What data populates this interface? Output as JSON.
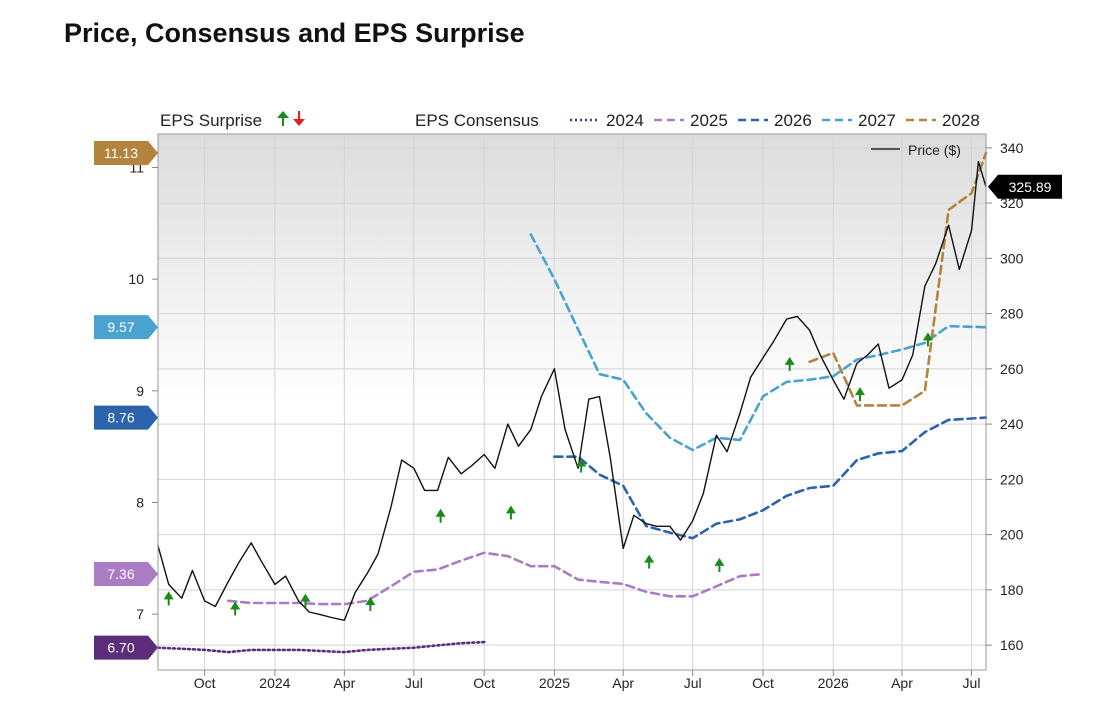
{
  "title": "Price, Consensus and EPS Surprise",
  "legend": {
    "eps_surprise_label": "EPS Surprise",
    "eps_consensus_label": "EPS Consensus",
    "price_label": "Price ($)"
  },
  "colors": {
    "2024": "#5b2d7a",
    "2025": "#a97cc3",
    "2026": "#2b64ad",
    "2027": "#4aa3cf",
    "2028": "#b3843e",
    "price": "#111111",
    "surprise_up": "#1a8a1a",
    "surprise_down": "#e02020",
    "price_badge": "#000000"
  },
  "chart_data": {
    "type": "line",
    "title": "Price, Consensus and EPS Surprise",
    "x_ticks": [
      "Oct",
      "2024",
      "Apr",
      "Jul",
      "Oct",
      "2025",
      "Apr",
      "Jul",
      "Oct",
      "2026",
      "Apr",
      "Jul"
    ],
    "x_tick_dates": [
      "2023-10",
      "2024-01",
      "2024-04",
      "2024-07",
      "2024-10",
      "2025-01",
      "2025-04",
      "2025-07",
      "2025-10",
      "2026-01",
      "2026-04",
      "2026-07"
    ],
    "x_range": [
      "2023-08-01",
      "2026-07-20"
    ],
    "left_axis": {
      "label": "",
      "ticks": [
        "7",
        "8",
        "9",
        "10",
        "11"
      ],
      "range": [
        6.5,
        11.3
      ]
    },
    "right_axis": {
      "label": "",
      "ticks": [
        "160",
        "180",
        "200",
        "220",
        "240",
        "260",
        "280",
        "300",
        "320",
        "340"
      ],
      "range": [
        151,
        345
      ]
    },
    "grid": true,
    "legend_position": "top",
    "current_price": "325.89",
    "series": [
      {
        "name": "2024",
        "axis": "left",
        "style": "dotted",
        "current": "6.70",
        "x": [
          "2023-08-01",
          "2023-09-01",
          "2023-10-01",
          "2023-11-01",
          "2023-12-01",
          "2024-01-01",
          "2024-02-01",
          "2024-03-01",
          "2024-04-01",
          "2024-05-01",
          "2024-06-01",
          "2024-07-01",
          "2024-08-01",
          "2024-09-01",
          "2024-10-01"
        ],
        "y": [
          6.7,
          6.69,
          6.68,
          6.66,
          6.68,
          6.68,
          6.68,
          6.67,
          6.66,
          6.68,
          6.69,
          6.7,
          6.72,
          6.74,
          6.75
        ]
      },
      {
        "name": "2025",
        "axis": "left",
        "style": "dashed",
        "current": "7.36",
        "x": [
          "2023-11-01",
          "2023-12-01",
          "2024-01-01",
          "2024-02-01",
          "2024-03-01",
          "2024-04-01",
          "2024-05-01",
          "2024-06-01",
          "2024-07-01",
          "2024-08-01",
          "2024-09-01",
          "2024-10-01",
          "2024-11-01",
          "2024-12-01",
          "2025-01-01",
          "2025-02-01",
          "2025-03-01",
          "2025-04-01",
          "2025-05-01",
          "2025-06-01",
          "2025-07-01",
          "2025-08-01",
          "2025-09-01",
          "2025-10-01"
        ],
        "y": [
          7.12,
          7.1,
          7.1,
          7.1,
          7.09,
          7.09,
          7.12,
          7.25,
          7.38,
          7.4,
          7.48,
          7.55,
          7.52,
          7.43,
          7.43,
          7.31,
          7.29,
          7.27,
          7.2,
          7.16,
          7.16,
          7.25,
          7.34,
          7.36
        ]
      },
      {
        "name": "2026",
        "axis": "left",
        "style": "dashed",
        "current": "8.76",
        "x": [
          "2025-01-01",
          "2025-02-01",
          "2025-03-01",
          "2025-04-01",
          "2025-05-01",
          "2025-06-01",
          "2025-07-01",
          "2025-08-01",
          "2025-09-01",
          "2025-10-01",
          "2025-11-01",
          "2025-12-01",
          "2026-01-01",
          "2026-02-01",
          "2026-03-01",
          "2026-04-01",
          "2026-05-01",
          "2026-06-01",
          "2026-07-20"
        ],
        "y": [
          8.41,
          8.41,
          8.25,
          8.15,
          7.79,
          7.73,
          7.68,
          7.81,
          7.85,
          7.93,
          8.06,
          8.13,
          8.15,
          8.38,
          8.44,
          8.46,
          8.63,
          8.74,
          8.76
        ]
      },
      {
        "name": "2027",
        "axis": "left",
        "style": "dashed",
        "current": "9.57",
        "x": [
          "2024-12-01",
          "2025-01-01",
          "2025-02-01",
          "2025-03-01",
          "2025-04-01",
          "2025-05-01",
          "2025-06-01",
          "2025-07-01",
          "2025-08-01",
          "2025-09-01",
          "2025-10-01",
          "2025-11-01",
          "2025-12-01",
          "2026-01-01",
          "2026-02-01",
          "2026-03-01",
          "2026-04-01",
          "2026-05-01",
          "2026-06-01",
          "2026-07-20"
        ],
        "y": [
          10.4,
          10.0,
          9.55,
          9.15,
          9.1,
          8.8,
          8.58,
          8.47,
          8.58,
          8.56,
          8.95,
          9.08,
          9.1,
          9.13,
          9.28,
          9.32,
          9.37,
          9.43,
          9.58,
          9.57
        ]
      },
      {
        "name": "2028",
        "axis": "left",
        "style": "dashed",
        "current": "11.13",
        "x": [
          "2025-12-01",
          "2026-01-01",
          "2026-02-01",
          "2026-03-01",
          "2026-04-01",
          "2026-05-01",
          "2026-06-01",
          "2026-07-01",
          "2026-07-20"
        ],
        "y": [
          9.26,
          9.34,
          8.87,
          8.87,
          8.87,
          9.0,
          10.62,
          10.77,
          11.13
        ]
      },
      {
        "name": "Price ($)",
        "axis": "right",
        "style": "solid",
        "x": [
          "2023-08-01",
          "2023-08-15",
          "2023-09-01",
          "2023-09-15",
          "2023-10-01",
          "2023-10-15",
          "2023-11-01",
          "2023-11-15",
          "2023-12-01",
          "2023-12-15",
          "2024-01-01",
          "2024-01-15",
          "2024-02-01",
          "2024-02-15",
          "2024-03-01",
          "2024-03-15",
          "2024-04-01",
          "2024-04-15",
          "2024-05-01",
          "2024-05-15",
          "2024-06-01",
          "2024-06-15",
          "2024-07-01",
          "2024-07-15",
          "2024-08-01",
          "2024-08-15",
          "2024-09-01",
          "2024-09-15",
          "2024-10-01",
          "2024-10-15",
          "2024-11-01",
          "2024-11-15",
          "2024-12-01",
          "2024-12-15",
          "2025-01-01",
          "2025-01-15",
          "2025-02-01",
          "2025-02-15",
          "2025-03-01",
          "2025-03-15",
          "2025-04-01",
          "2025-04-15",
          "2025-05-01",
          "2025-05-15",
          "2025-06-01",
          "2025-06-15",
          "2025-07-01",
          "2025-07-15",
          "2025-08-01",
          "2025-08-15",
          "2025-09-01",
          "2025-09-15",
          "2025-10-01",
          "2025-10-15",
          "2025-11-01",
          "2025-11-15",
          "2025-12-01",
          "2025-12-15",
          "2026-01-01",
          "2026-01-15",
          "2026-02-01",
          "2026-02-15",
          "2026-03-01",
          "2026-03-15",
          "2026-04-01",
          "2026-04-15",
          "2026-05-01",
          "2026-05-15",
          "2026-06-01",
          "2026-06-15",
          "2026-07-01",
          "2026-07-10",
          "2026-07-20"
        ],
        "y": [
          196,
          182,
          177,
          187,
          176,
          174,
          183,
          190,
          197,
          190,
          182,
          185,
          176,
          172,
          171,
          170,
          169,
          179,
          186,
          193,
          210,
          227,
          224,
          216,
          216,
          228,
          222,
          225,
          229,
          224,
          240,
          232,
          238,
          250,
          260,
          238,
          224,
          249,
          250,
          228,
          195,
          207,
          204,
          203,
          203,
          198,
          205,
          215,
          236,
          230,
          244,
          257,
          264,
          270,
          278,
          279,
          274,
          265,
          256,
          249,
          262,
          265,
          269,
          253,
          256,
          265,
          290,
          298,
          312,
          296,
          310,
          335,
          325.89
        ]
      }
    ],
    "eps_surprises": {
      "direction": "up",
      "dates": [
        "2023-08-15",
        "2023-11-10",
        "2024-02-10",
        "2024-05-05",
        "2024-08-05",
        "2024-11-05",
        "2025-02-05",
        "2025-05-05",
        "2025-08-05",
        "2025-11-05",
        "2026-02-05",
        "2026-05-05"
      ],
      "values": [
        7.15,
        7.06,
        7.13,
        7.1,
        7.89,
        7.92,
        8.34,
        7.48,
        7.45,
        9.25,
        8.98,
        9.47
      ]
    }
  }
}
